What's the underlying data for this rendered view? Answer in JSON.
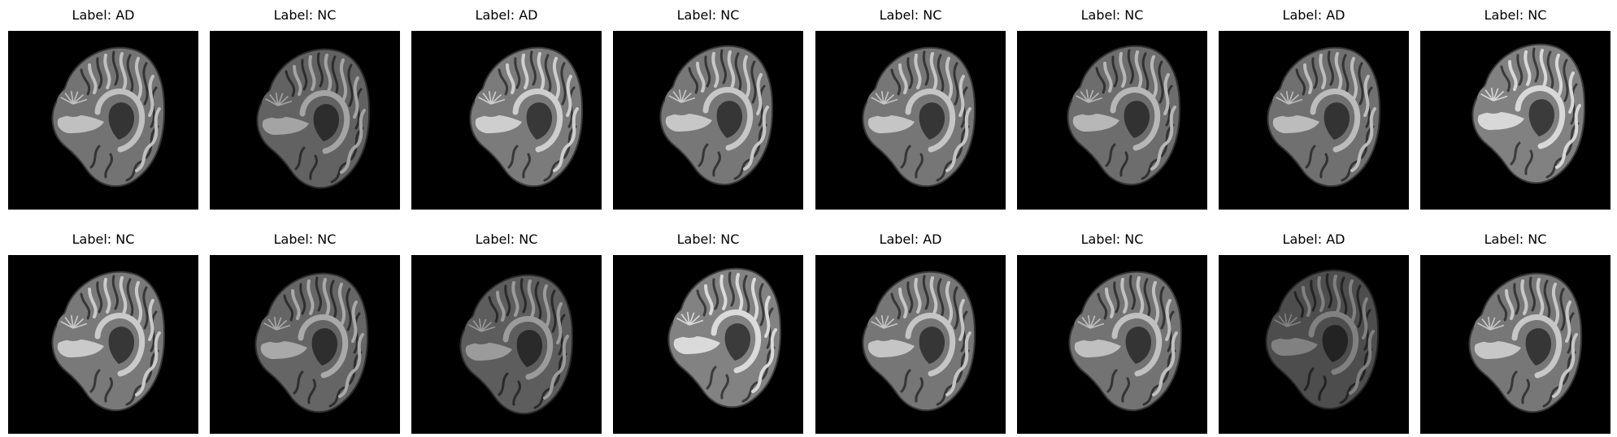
{
  "figure": {
    "rows": [
      [
        {
          "label": "Label: AD",
          "icon": "brain-mri-slice-icon",
          "brightness": 0.82
        },
        {
          "label": "Label: NC",
          "icon": "brain-mri-slice-icon",
          "brightness": 0.7
        },
        {
          "label": "Label: AD",
          "icon": "brain-mri-slice-icon",
          "brightness": 0.88
        },
        {
          "label": "Label: NC",
          "icon": "brain-mri-slice-icon",
          "brightness": 0.85
        },
        {
          "label": "Label: NC",
          "icon": "brain-mri-slice-icon",
          "brightness": 0.84
        },
        {
          "label": "Label: NC",
          "icon": "brain-mri-slice-icon",
          "brightness": 0.78
        },
        {
          "label": "Label: AD",
          "icon": "brain-mri-slice-icon",
          "brightness": 0.8
        },
        {
          "label": "Label: NC",
          "icon": "brain-mri-slice-icon",
          "brightness": 0.92
        }
      ],
      [
        {
          "label": "Label: NC",
          "icon": "brain-mri-slice-icon",
          "brightness": 0.86
        },
        {
          "label": "Label: NC",
          "icon": "brain-mri-slice-icon",
          "brightness": 0.72
        },
        {
          "label": "Label: NC",
          "icon": "brain-mri-slice-icon",
          "brightness": 0.66
        },
        {
          "label": "Label: NC",
          "icon": "brain-mri-slice-icon",
          "brightness": 0.93
        },
        {
          "label": "Label: AD",
          "icon": "brain-mri-slice-icon",
          "brightness": 0.84
        },
        {
          "label": "Label: NC",
          "icon": "brain-mri-slice-icon",
          "brightness": 0.82
        },
        {
          "label": "Label: AD",
          "icon": "brain-mri-slice-icon",
          "brightness": 0.55
        },
        {
          "label": "Label: NC",
          "icon": "brain-mri-slice-icon",
          "brightness": 0.85
        }
      ]
    ],
    "colors": {
      "background": "#ffffff",
      "panel": "#000000",
      "text": "#000000"
    }
  }
}
